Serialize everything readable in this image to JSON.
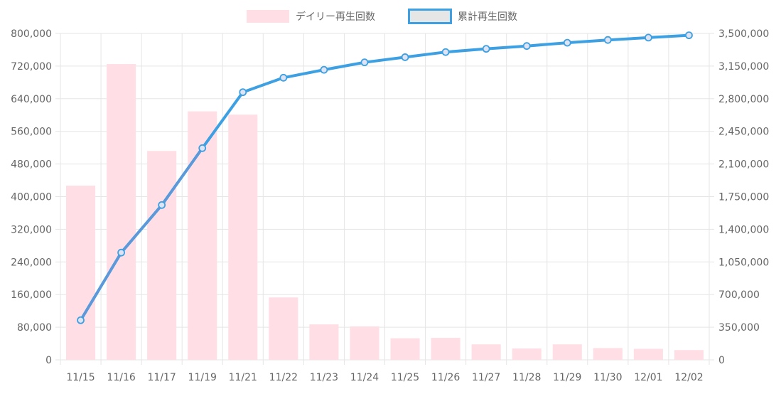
{
  "chart_data": {
    "type": "bar",
    "categories": [
      "11/15",
      "11/16",
      "11/17",
      "11/19",
      "11/21",
      "11/22",
      "11/23",
      "11/24",
      "11/25",
      "11/26",
      "11/27",
      "11/28",
      "11/29",
      "11/30",
      "12/01",
      "12/02"
    ],
    "series": [
      {
        "name": "デイリー再生回数",
        "type": "bar",
        "axis": "left",
        "color_fill": "#ffdfe5",
        "values": [
          427000,
          725000,
          512000,
          609000,
          601000,
          153000,
          87000,
          82000,
          53000,
          54000,
          38000,
          28000,
          38000,
          29000,
          27000,
          24000
        ]
      },
      {
        "name": "累計再生回数",
        "type": "line",
        "axis": "right",
        "color_line": "#3da0e2",
        "color_fill": "#e6e6e6",
        "values": [
          425000,
          1150000,
          1660000,
          2270000,
          2870000,
          3025000,
          3110000,
          3190000,
          3245000,
          3300000,
          3335000,
          3365000,
          3400000,
          3430000,
          3455000,
          3480000
        ]
      }
    ],
    "y_left": {
      "min": 0,
      "max": 800000,
      "ticks": [
        "0",
        "80,000",
        "160,000",
        "240,000",
        "320,000",
        "400,000",
        "480,000",
        "560,000",
        "640,000",
        "720,000",
        "800,000"
      ]
    },
    "y_right": {
      "min": 0,
      "max": 3500000,
      "ticks": [
        "0",
        "350,000",
        "700,000",
        "1,050,000",
        "1,400,000",
        "1,750,000",
        "2,100,000",
        "2,450,000",
        "2,800,000",
        "3,150,000",
        "3,500,000"
      ]
    },
    "grid": true,
    "legend_position": "top-center",
    "colors": {
      "grid": "#e5e5e5",
      "axis_text": "#666666",
      "bar_fill": "#ffdfe5",
      "line": "#3da0e2",
      "line_overlay": "#7d8fd0"
    }
  }
}
